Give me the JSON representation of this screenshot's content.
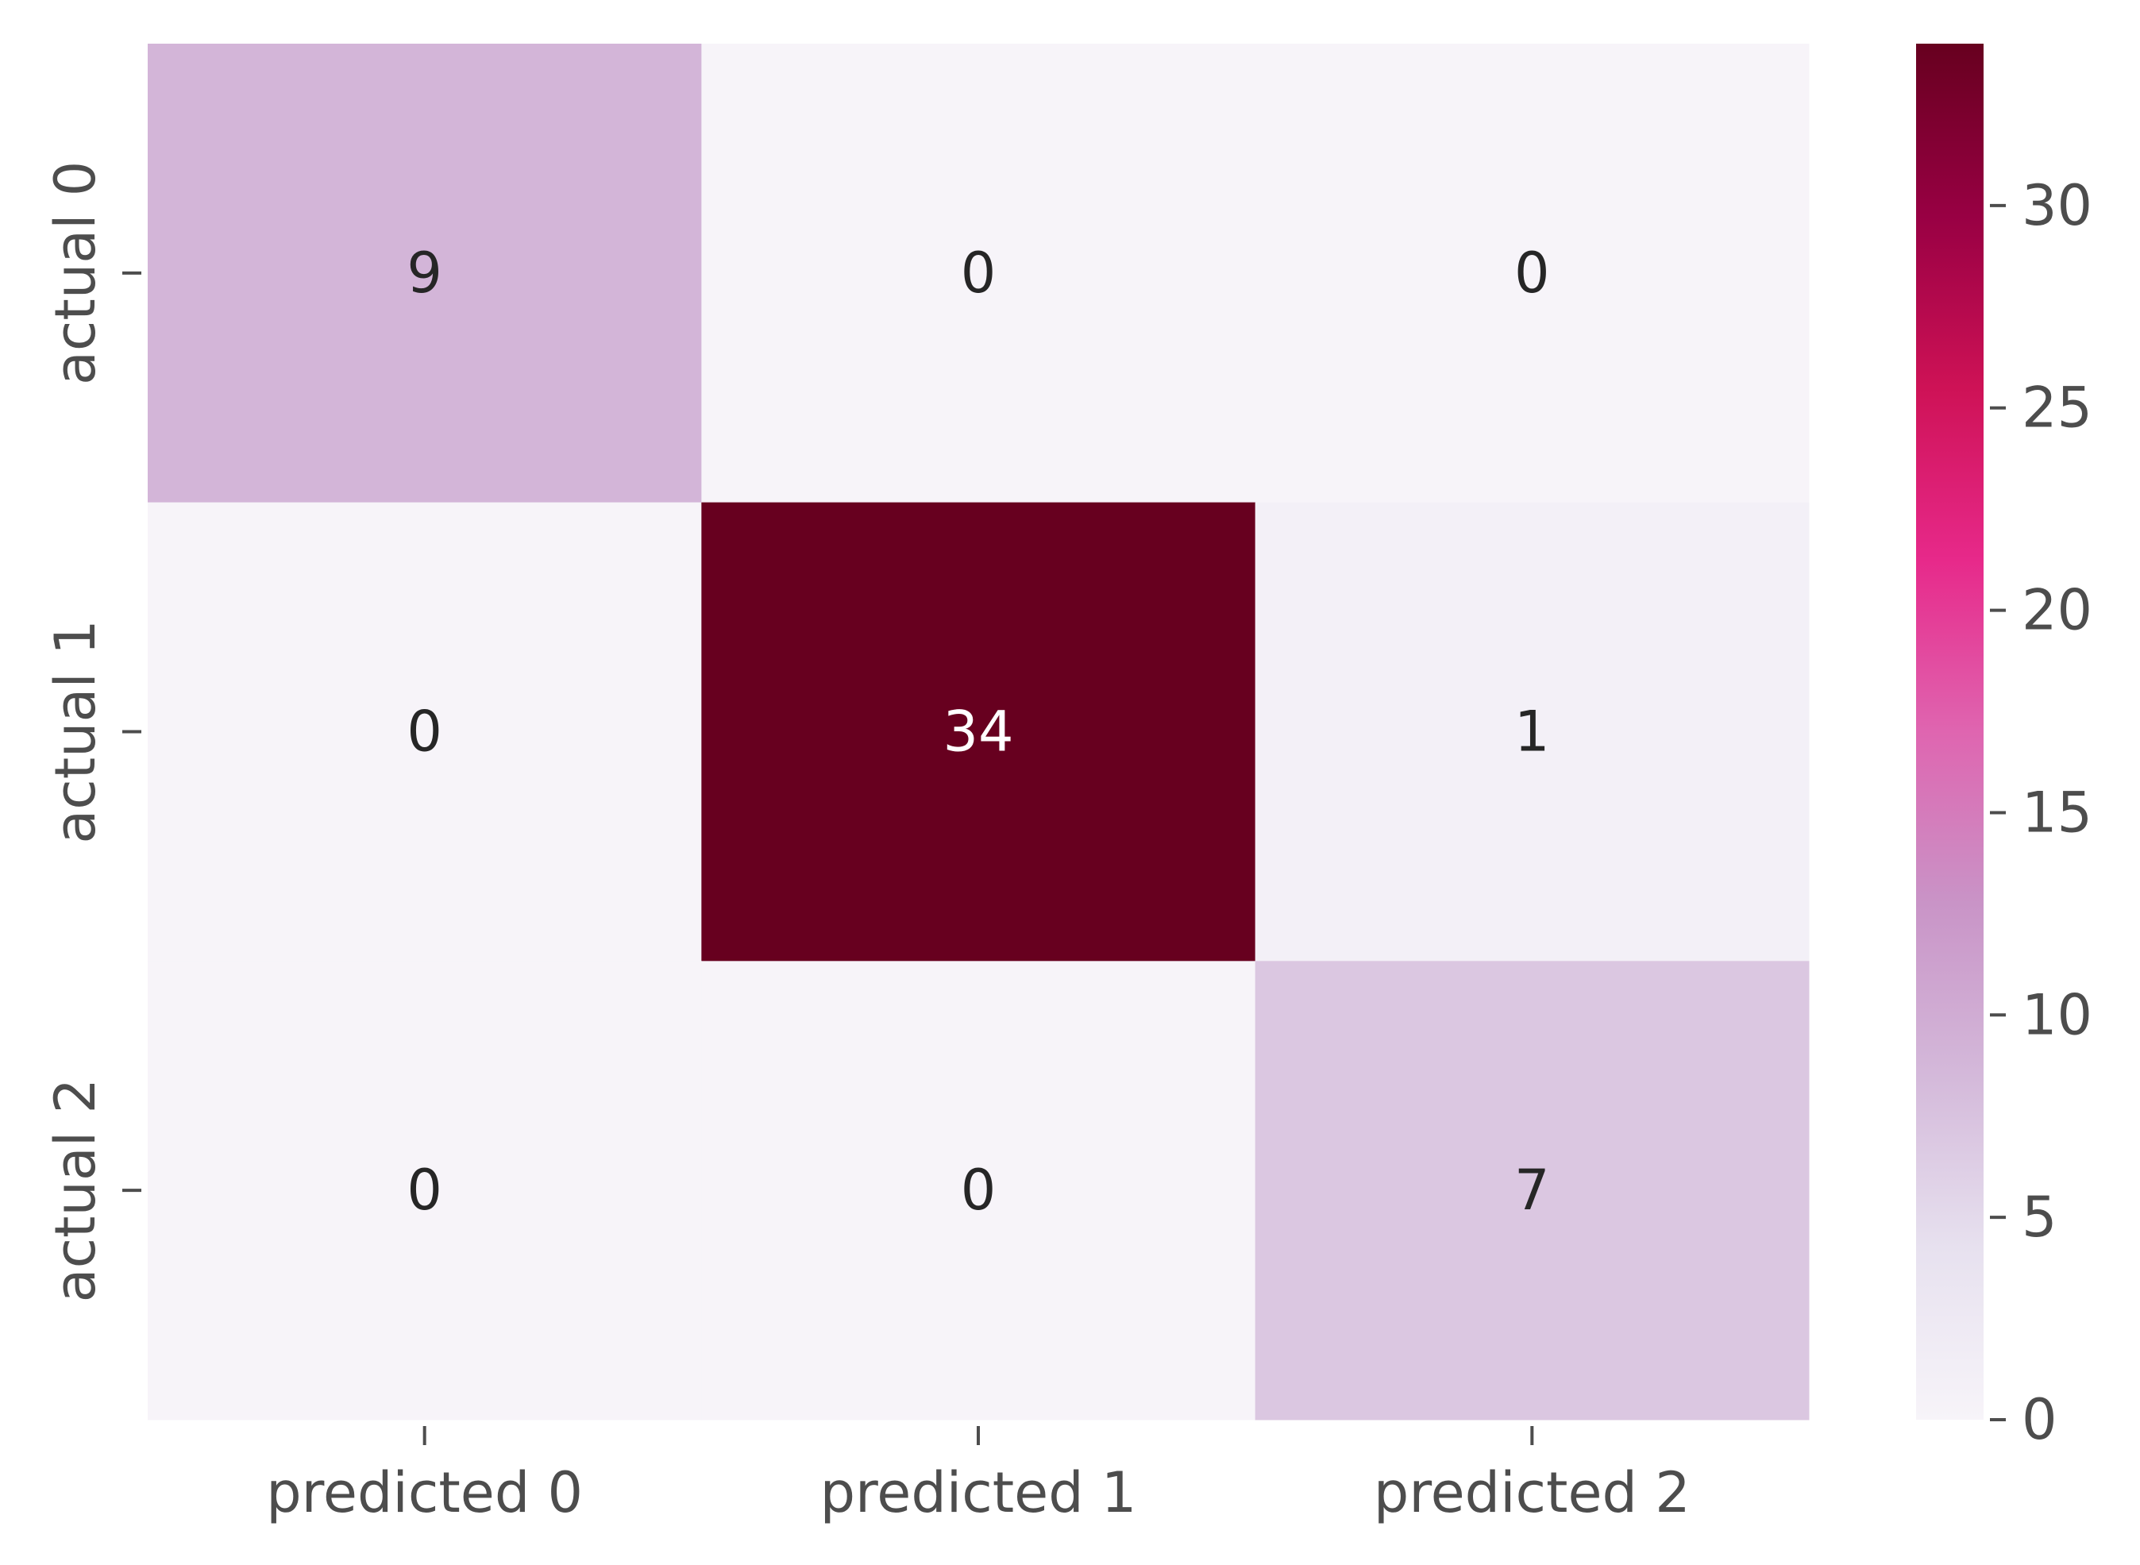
{
  "chart_data": {
    "type": "heatmap",
    "title": "",
    "xlabel": "",
    "ylabel": "",
    "x_tick_labels": [
      "predicted 0",
      "predicted 1",
      "predicted 2"
    ],
    "y_tick_labels": [
      "actual 0",
      "actual 1",
      "actual 2"
    ],
    "values": [
      [
        9,
        0,
        0
      ],
      [
        0,
        34,
        1
      ],
      [
        0,
        0,
        7
      ]
    ],
    "colorbar": {
      "range": [
        0,
        34
      ],
      "ticks": [
        0,
        5,
        10,
        15,
        20,
        25,
        30
      ],
      "colormap": "PuRd",
      "color_stops": [
        "#f7f4f9",
        "#e7e1ef",
        "#d4b9da",
        "#c994c7",
        "#df65b0",
        "#e7298a",
        "#ce1256",
        "#980043",
        "#67001f"
      ]
    },
    "annotation_colors": {
      "dark_text": "#262626",
      "light_text": "#ffffff"
    },
    "axis_text_color": "#4d4d4d"
  }
}
